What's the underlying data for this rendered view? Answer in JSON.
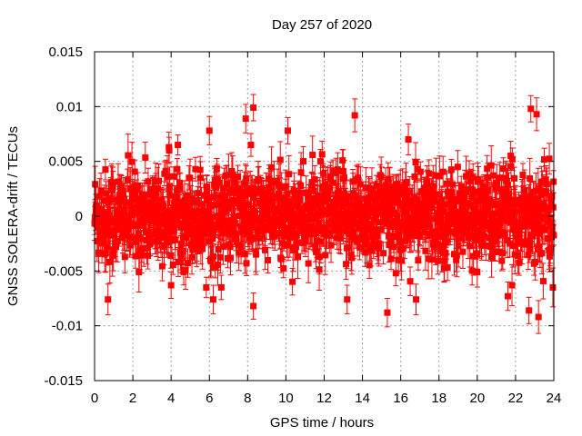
{
  "chart_data": {
    "type": "scatter",
    "title": "Day 257 of 2020",
    "xlabel": "GPS time / hours",
    "ylabel": "GNSS SOLERA-drift / TECUs",
    "xlim": [
      0,
      24
    ],
    "ylim": [
      -0.015,
      0.015
    ],
    "xticks": [
      0,
      2,
      4,
      6,
      8,
      10,
      12,
      14,
      16,
      18,
      20,
      22,
      24
    ],
    "yticks": [
      "-0.015",
      "-0.01",
      "-0.005",
      "0",
      "0.005",
      "0.01",
      "0.015"
    ],
    "grid": true,
    "legend": "none",
    "series_color": "#ff0000",
    "series": [
      {
        "name": "SOLERA-drift",
        "style": "points with y-error bars",
        "bulk_summary": {
          "n_points": 1440,
          "mean": 0.0,
          "std": 0.0021,
          "typical_error": 0.0014
        },
        "notable_points": [
          {
            "x": 8.3,
            "y": 0.0099,
            "err": 0.0012
          },
          {
            "x": 7.9,
            "y": 0.0089,
            "err": 0.0013
          },
          {
            "x": 13.6,
            "y": 0.0092,
            "err": 0.0015
          },
          {
            "x": 22.8,
            "y": 0.0098,
            "err": 0.0012
          },
          {
            "x": 23.1,
            "y": 0.0093,
            "err": 0.0015
          },
          {
            "x": 6.0,
            "y": 0.0078,
            "err": 0.0013
          },
          {
            "x": 10.1,
            "y": 0.0078,
            "err": 0.0012
          },
          {
            "x": 3.9,
            "y": 0.006,
            "err": 0.0012
          },
          {
            "x": 16.4,
            "y": 0.007,
            "err": 0.0014
          },
          {
            "x": 15.3,
            "y": -0.0088,
            "err": 0.0013
          },
          {
            "x": 22.7,
            "y": -0.0086,
            "err": 0.0012
          },
          {
            "x": 23.2,
            "y": -0.0092,
            "err": 0.0015
          },
          {
            "x": 8.3,
            "y": -0.0082,
            "err": 0.0012
          },
          {
            "x": 6.2,
            "y": -0.0076,
            "err": 0.0013
          },
          {
            "x": 0.7,
            "y": -0.0076,
            "err": 0.0014
          },
          {
            "x": 4.0,
            "y": -0.0063,
            "err": 0.0012
          },
          {
            "x": 13.2,
            "y": -0.0076,
            "err": 0.0013
          },
          {
            "x": 16.8,
            "y": -0.0076,
            "err": 0.0014
          },
          {
            "x": 21.6,
            "y": -0.0073,
            "err": 0.0013
          }
        ]
      }
    ]
  }
}
